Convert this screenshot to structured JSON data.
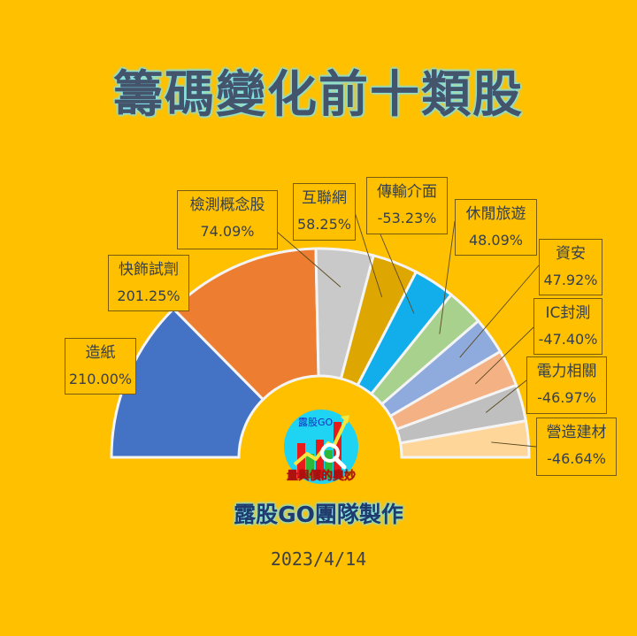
{
  "title": "籌碼變化前十類股",
  "footer": {
    "team": "露股GO團隊製作",
    "date": "2023/4/14"
  },
  "logo": {
    "brand": "露股GO",
    "caption": "量與價的奧妙",
    "icon": "stock-chart-magnifier-icon"
  },
  "colors": {
    "background": "#FFC000",
    "title": "#44546A",
    "title_glow": "#7FE3F0"
  },
  "labels": [
    {
      "name": "造紙",
      "pct": "210.00%"
    },
    {
      "name": "快飾試劑",
      "pct": "201.25%"
    },
    {
      "name": "檢測概念股",
      "pct": "74.09%"
    },
    {
      "name": "互聯網",
      "pct": "58.25%"
    },
    {
      "name": "傳輸介面",
      "pct": "-53.23%"
    },
    {
      "name": "休閒旅遊",
      "pct": "48.09%"
    },
    {
      "name": "資安",
      "pct": "47.92%"
    },
    {
      "name": "IC封測",
      "pct": "-47.40%"
    },
    {
      "name": "電力相關",
      "pct": "-46.97%"
    },
    {
      "name": "營造建材",
      "pct": "-46.64%"
    }
  ],
  "chart_data": {
    "type": "pie",
    "subtype": "half-donut",
    "title": "籌碼變化前十類股",
    "categories": [
      "造紙",
      "快飾試劑",
      "檢測概念股",
      "互聯網",
      "傳輸介面",
      "休閒旅遊",
      "資安",
      "IC封測",
      "電力相關",
      "營造建材"
    ],
    "values": [
      210.0,
      201.25,
      74.09,
      58.25,
      -53.23,
      48.09,
      47.92,
      -47.4,
      -46.97,
      -46.64
    ],
    "value_format": "percent",
    "slice_colors": [
      "#4472C4",
      "#ED7D31",
      "#C9C9C9",
      "#DDA600",
      "#12AEEB",
      "#A9D18E",
      "#8FAADC",
      "#F4B183",
      "#BFBFBF",
      "#FFD699"
    ],
    "legend": "none",
    "data_labels": "callout boxes with category name and value"
  }
}
